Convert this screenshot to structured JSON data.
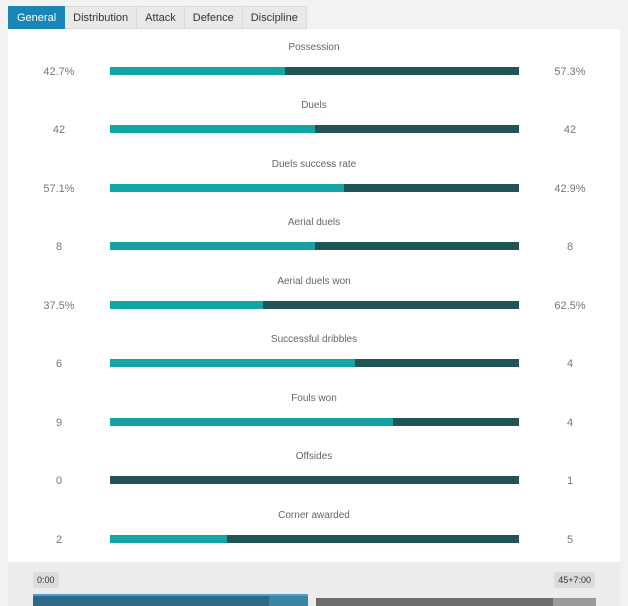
{
  "tabs": [
    {
      "label": "General",
      "active": true
    },
    {
      "label": "Distribution",
      "active": false
    },
    {
      "label": "Attack",
      "active": false
    },
    {
      "label": "Defence",
      "active": false
    },
    {
      "label": "Discipline",
      "active": false
    }
  ],
  "colors": {
    "home_bar": "#16a3a4",
    "away_bar": "#235455",
    "active_tab": "#1a85b7"
  },
  "stats": [
    {
      "label": "Possession",
      "home": "42.7%",
      "away": "57.3%",
      "home_share": 0.427
    },
    {
      "label": "Duels",
      "home": "42",
      "away": "42",
      "home_share": 0.5
    },
    {
      "label": "Duels success rate",
      "home": "57.1%",
      "away": "42.9%",
      "home_share": 0.571
    },
    {
      "label": "Aerial duels",
      "home": "8",
      "away": "8",
      "home_share": 0.5
    },
    {
      "label": "Aerial duels won",
      "home": "37.5%",
      "away": "62.5%",
      "home_share": 0.375
    },
    {
      "label": "Successful dribbles",
      "home": "6",
      "away": "4",
      "home_share": 0.6
    },
    {
      "label": "Fouls won",
      "home": "9",
      "away": "4",
      "home_share": 0.692
    },
    {
      "label": "Offsides",
      "home": "0",
      "away": "1",
      "home_share": 0.0
    },
    {
      "label": "Corner awarded",
      "home": "2",
      "away": "5",
      "home_share": 0.286
    }
  ],
  "timeline": {
    "start": "0:00",
    "end": "45+7:00"
  }
}
